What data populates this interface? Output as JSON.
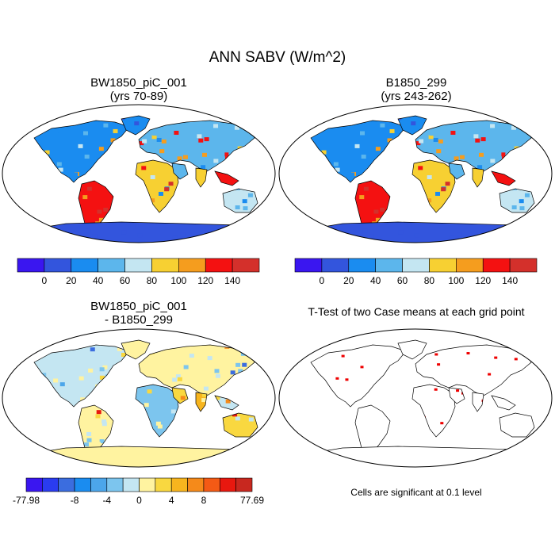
{
  "chart_data": {
    "type": "heatmap",
    "title": "ANN SABV (W/m^2)",
    "panels": [
      {
        "title": [
          "BW1850_piC_001",
          "(yrs 70-89)"
        ],
        "colorbar": {
          "tick_labels": [
            "0",
            "20",
            "40",
            "60",
            "80",
            "100",
            "120",
            "140"
          ],
          "colors": [
            "#3a16f0",
            "#3355dd",
            "#1a8cf0",
            "#5cb6ec",
            "#c4e6f2",
            "#f7d032",
            "#f59d1e",
            "#f41111",
            "#d4302b"
          ]
        }
      },
      {
        "title": [
          "B1850_299",
          "(yrs 243-262)"
        ],
        "colorbar": {
          "tick_labels": [
            "0",
            "20",
            "40",
            "60",
            "80",
            "100",
            "120",
            "140"
          ],
          "colors": [
            "#3a16f0",
            "#3355dd",
            "#1a8cf0",
            "#5cb6ec",
            "#c4e6f2",
            "#f7d032",
            "#f59d1e",
            "#f41111",
            "#d4302b"
          ]
        }
      },
      {
        "title": [
          "BW1850_piC_001",
          "- B1850_299"
        ],
        "colorbar": {
          "tick_labels": [
            "-77.98",
            "-8",
            "-4",
            "0",
            "4",
            "8",
            "77.69"
          ],
          "colors": [
            "#3a16f0",
            "#2a3cf0",
            "#3b6ddf",
            "#1a8cf0",
            "#4ca6ea",
            "#7cc5ee",
            "#c4e6f2",
            "#fff3a0",
            "#f9d840",
            "#f7b51e",
            "#f58a1a",
            "#f45a15",
            "#e8180f",
            "#c8281f"
          ]
        }
      },
      {
        "title": [
          "T-Test of two Case means at each grid point"
        ],
        "note": "Cells are significant at 0.1 level",
        "color": "#ee0000"
      }
    ]
  }
}
